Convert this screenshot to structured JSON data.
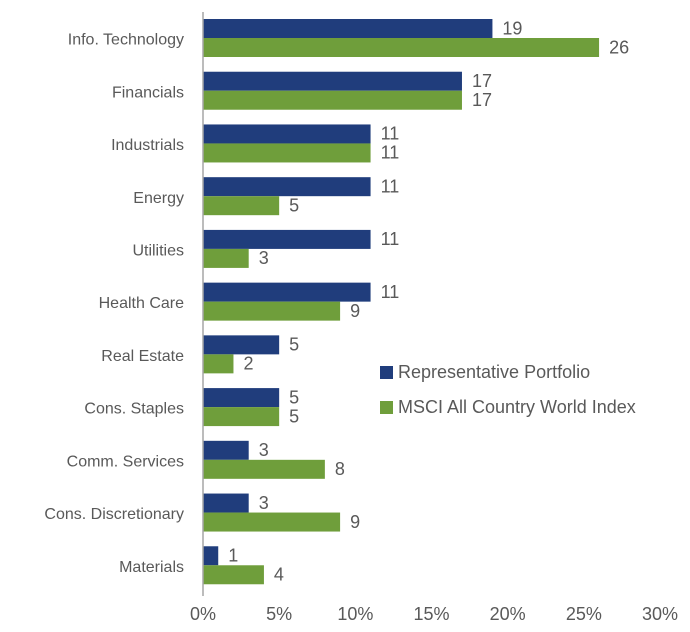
{
  "chart_data": {
    "type": "bar",
    "orientation": "horizontal",
    "categories": [
      "Info. Technology",
      "Financials",
      "Industrials",
      "Energy",
      "Utilities",
      "Health Care",
      "Real Estate",
      "Cons. Staples",
      "Comm. Services",
      "Cons. Discretionary",
      "Materials"
    ],
    "series": [
      {
        "name": "Representative Portfolio",
        "color": "#203d7c",
        "values": [
          19,
          17,
          11,
          11,
          11,
          11,
          5,
          5,
          3,
          3,
          1
        ]
      },
      {
        "name": "MSCI All Country World Index",
        "color": "#6f9e3b",
        "values": [
          26,
          17,
          11,
          5,
          3,
          9,
          2,
          5,
          8,
          9,
          4
        ]
      }
    ],
    "xlim": [
      0,
      30
    ],
    "xticks": [
      {
        "value": 0,
        "label": "0%"
      },
      {
        "value": 5,
        "label": "5%"
      },
      {
        "value": 10,
        "label": "10%"
      },
      {
        "value": 15,
        "label": "15%"
      },
      {
        "value": 20,
        "label": "20%"
      },
      {
        "value": 25,
        "label": "25%"
      },
      {
        "value": 30,
        "label": "30%"
      }
    ],
    "legend": "center right"
  }
}
